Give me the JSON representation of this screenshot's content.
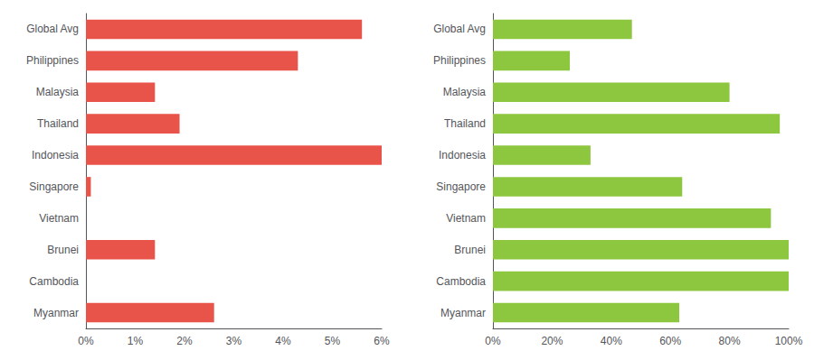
{
  "chart_data": [
    {
      "type": "bar",
      "orientation": "horizontal",
      "categories": [
        "Global Avg",
        "Philippines",
        "Malaysia",
        "Thailand",
        "Indonesia",
        "Singapore",
        "Vietnam",
        "Brunei",
        "Cambodia",
        "Myanmar"
      ],
      "values": [
        5.6,
        4.3,
        1.4,
        1.9,
        6.0,
        0.1,
        0.0,
        1.4,
        0.0,
        2.6
      ],
      "color": "#e8534a",
      "xlim": [
        0,
        6
      ],
      "xticks": [
        {
          "value": 0,
          "label": "0%"
        },
        {
          "value": 1,
          "label": "1%"
        },
        {
          "value": 2,
          "label": "2%"
        },
        {
          "value": 3,
          "label": "3%"
        },
        {
          "value": 4,
          "label": "4%"
        },
        {
          "value": 5,
          "label": "5%"
        },
        {
          "value": 6,
          "label": "6%"
        }
      ],
      "grid": false
    },
    {
      "type": "bar",
      "orientation": "horizontal",
      "categories": [
        "Global Avg",
        "Philippines",
        "Malaysia",
        "Thailand",
        "Indonesia",
        "Singapore",
        "Vietnam",
        "Brunei",
        "Cambodia",
        "Myanmar"
      ],
      "values": [
        47,
        26,
        80,
        97,
        33,
        64,
        94,
        100,
        100,
        63
      ],
      "color": "#8dc63f",
      "xlim": [
        0,
        100
      ],
      "xticks": [
        {
          "value": 0,
          "label": "0%"
        },
        {
          "value": 20,
          "label": "20%"
        },
        {
          "value": 40,
          "label": "40%"
        },
        {
          "value": 60,
          "label": "60%"
        },
        {
          "value": 80,
          "label": "80%"
        },
        {
          "value": 100,
          "label": "100%"
        }
      ],
      "grid": false
    }
  ]
}
